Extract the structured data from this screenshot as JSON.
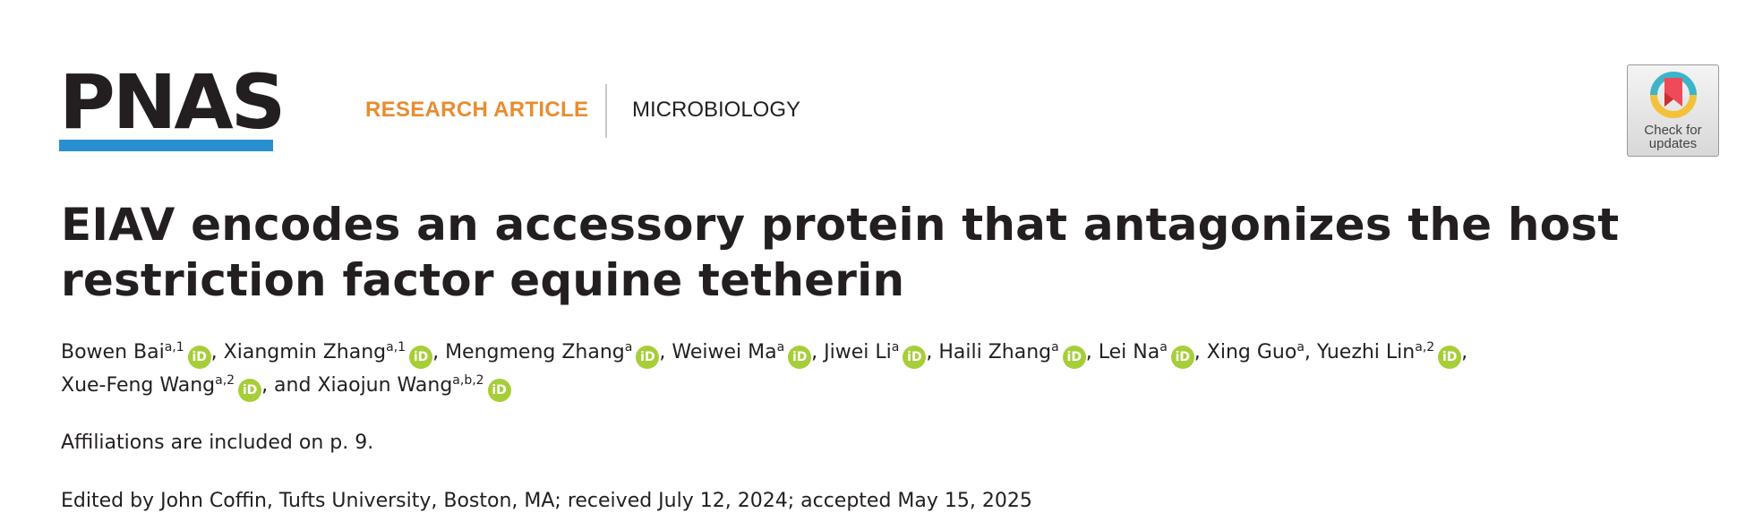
{
  "header": {
    "journal_logo": "PNAS",
    "logo_bar_color": "#2a8fd1",
    "article_type": "RESEARCH ARTICLE",
    "article_type_color": "#e88d30",
    "subject": "MICROBIOLOGY",
    "check_updates": {
      "line1": "Check for",
      "line2": "updates"
    }
  },
  "article": {
    "title": "EIAV encodes an accessory protein that antagonizes the host restriction factor equine tetherin",
    "authors": [
      {
        "name": "Bowen Bai",
        "sup": "a,1",
        "orcid": true,
        "sep": ", "
      },
      {
        "name": "Xiangmin Zhang",
        "sup": "a,1",
        "orcid": true,
        "sep": ", "
      },
      {
        "name": "Mengmeng Zhang",
        "sup": "a",
        "orcid": true,
        "sep": ", "
      },
      {
        "name": "Weiwei Ma",
        "sup": "a",
        "orcid": true,
        "sep": ", "
      },
      {
        "name": "Jiwei Li",
        "sup": "a",
        "orcid": true,
        "sep": ", "
      },
      {
        "name": "Haili Zhang",
        "sup": "a",
        "orcid": true,
        "sep": ", "
      },
      {
        "name": "Lei Na",
        "sup": "a",
        "orcid": true,
        "sep": ", "
      },
      {
        "name": "Xing Guo",
        "sup": "a",
        "orcid": false,
        "sep": ", "
      },
      {
        "name": "Yuezhi Lin",
        "sup": "a,2",
        "orcid": true,
        "sep": ", "
      },
      {
        "name": "Xue-Feng Wang",
        "sup": "a,2",
        "orcid": true,
        "sep": ", and "
      },
      {
        "name": "Xiaojun Wang",
        "sup": "a,b,2",
        "orcid": true,
        "sep": ""
      }
    ],
    "orcid_label": "iD",
    "orcid_color": "#a6ce39",
    "affiliations_note": "Affiliations are included on p. 9.",
    "edited_line": "Edited by John Coffin, Tufts University, Boston, MA; received July 12, 2024; accepted May 15, 2025"
  }
}
